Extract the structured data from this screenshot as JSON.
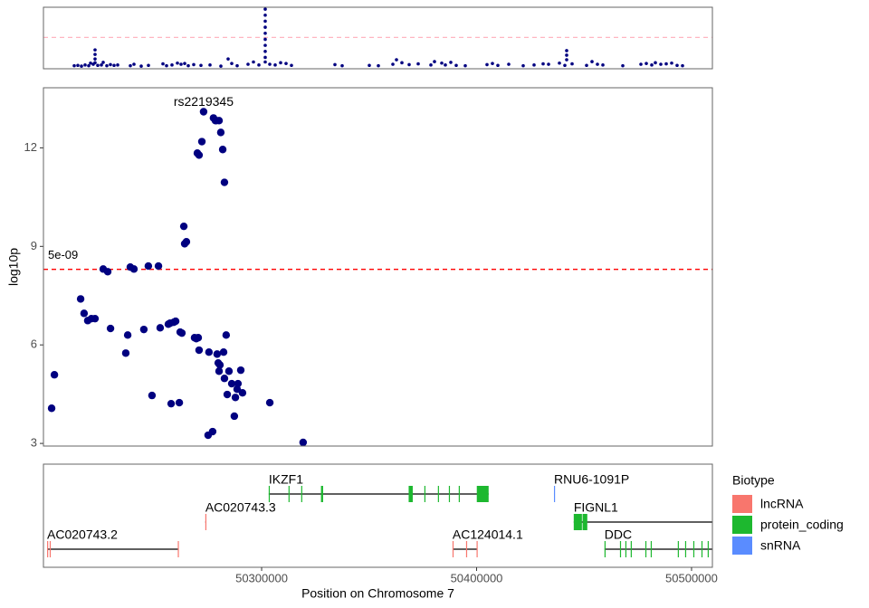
{
  "chart_data": [
    {
      "type": "scatter",
      "x": [
        34,
        38,
        42,
        46,
        50,
        52,
        55,
        57,
        57,
        57,
        57,
        60,
        64,
        66,
        70,
        74,
        78,
        82,
        96,
        100,
        108,
        116,
        132,
        136,
        142,
        148,
        152,
        156,
        160,
        166,
        174,
        184,
        196,
        204,
        208,
        214,
        226,
        232,
        238,
        245,
        245,
        245,
        245,
        245,
        245,
        245,
        245,
        245,
        245,
        250,
        256,
        262,
        268,
        274,
        322,
        330,
        360,
        370,
        386,
        390,
        396,
        404,
        414,
        428,
        432,
        440,
        444,
        450,
        456,
        466,
        490,
        496,
        502,
        514,
        530,
        542,
        552,
        558,
        570,
        576,
        578,
        578,
        578,
        584,
        600,
        606,
        612,
        618,
        640,
        660,
        666,
        672,
        676,
        682,
        688,
        694,
        700,
        706
      ],
      "values": [
        0.8,
        0.9,
        0.7,
        1.0,
        0.8,
        1.5,
        1.2,
        5.0,
        3.8,
        2.6,
        1.6,
        0.9,
        1.0,
        1.7,
        0.8,
        1.1,
        0.9,
        1.0,
        0.8,
        1.2,
        0.7,
        0.9,
        1.3,
        0.8,
        1.0,
        1.5,
        1.2,
        1.4,
        0.8,
        1.1,
        0.9,
        1.0,
        0.7,
        2.6,
        1.4,
        0.8,
        1.2,
        1.8,
        1.0,
        15.8,
        14.2,
        12.6,
        11.0,
        9.4,
        7.8,
        6.2,
        4.6,
        3.0,
        1.8,
        1.2,
        1.0,
        1.6,
        1.4,
        0.9,
        1.1,
        0.8,
        0.9,
        0.8,
        1.2,
        2.4,
        1.6,
        1.1,
        1.3,
        1.0,
        1.9,
        1.5,
        1.0,
        1.7,
        0.9,
        0.8,
        1.1,
        1.4,
        0.9,
        1.2,
        0.8,
        1.0,
        1.3,
        1.2,
        1.5,
        0.9,
        4.8,
        3.6,
        2.4,
        1.3,
        0.9,
        1.9,
        1.2,
        1.0,
        0.8,
        1.2,
        1.4,
        1.0,
        1.6,
        1.2,
        1.3,
        1.5,
        0.9,
        0.8
      ],
      "color": "#000080",
      "xlim": [
        0,
        739
      ],
      "ylim": [
        0,
        16.3
      ],
      "threshold": 8.3,
      "threshold_color": "#ffb6c1"
    },
    {
      "type": "scatter",
      "x": [
        50202300,
        50203600,
        50215800,
        50217400,
        50219100,
        50220800,
        50222500,
        50226300,
        50228400,
        50229700,
        50236800,
        50237700,
        50238900,
        50240600,
        50245200,
        50247300,
        50249000,
        50252000,
        50252800,
        50256600,
        50257400,
        50257900,
        50259100,
        50260000,
        50261700,
        50262100,
        50262900,
        50263800,
        50264200,
        50265000,
        50268800,
        50269600,
        50270500,
        50270900,
        50270100,
        50270900,
        50272200,
        50273000,
        50275100,
        50275500,
        50277200,
        50277600,
        50278500,
        50278900,
        50279300,
        50279800,
        50280200,
        50280200,
        50280600,
        50281000,
        50281900,
        50282300,
        50282700,
        50282700,
        50283500,
        50284000,
        50284800,
        50286100,
        50287300,
        50287800,
        50288600,
        50289000,
        50290300,
        50291100,
        50303800,
        50319300
      ],
      "values": [
        4.07,
        5.09,
        7.4,
        6.96,
        6.74,
        6.8,
        6.8,
        8.31,
        8.23,
        6.5,
        5.75,
        6.3,
        8.37,
        8.31,
        6.47,
        8.4,
        4.46,
        8.4,
        6.52,
        6.63,
        6.66,
        4.21,
        6.69,
        6.72,
        4.24,
        6.39,
        6.36,
        9.61,
        9.08,
        9.14,
        6.22,
        6.19,
        6.22,
        5.84,
        11.84,
        11.78,
        12.19,
        13.1,
        3.25,
        5.78,
        3.36,
        12.91,
        12.83,
        12.83,
        5.72,
        5.45,
        12.83,
        5.2,
        5.39,
        12.47,
        11.95,
        5.78,
        4.98,
        10.95,
        6.3,
        4.49,
        5.2,
        4.82,
        3.83,
        4.4,
        4.65,
        4.82,
        5.23,
        4.54,
        4.24,
        3.03
      ],
      "color": "#000080",
      "xlim": [
        50198500,
        50509700
      ],
      "ylim": [
        2.92,
        13.83
      ],
      "yticks": [
        3,
        6,
        9,
        12
      ],
      "ylabel": "log10p",
      "threshold": 8.30103,
      "threshold_label": "5e-09",
      "threshold_color": "#ff0000",
      "annotation": {
        "text": "rs2219345",
        "x": 50273000,
        "y": 13.1,
        "color": "#000080"
      }
    },
    {
      "type": "gene_track",
      "xlim": [
        50198500,
        50509700
      ],
      "xticks": [
        50300000,
        50400000,
        50500000
      ],
      "xlabel": "Position on Chromosome 7",
      "legend_title": "Biotype",
      "biotypes": [
        {
          "name": "lncRNA",
          "color": "#f8766d"
        },
        {
          "name": "protein_coding",
          "color": "#1db82f"
        },
        {
          "name": "snRNA",
          "color": "#5a8cff"
        }
      ],
      "genes": [
        {
          "name": "IKZF1",
          "biotype": 1,
          "start": 50303300,
          "end": 50405600,
          "exons": [
            [
              50303300,
              50303700
            ],
            [
              50312500,
              50312700
            ],
            [
              50318400,
              50318600
            ],
            [
              50327600,
              50328600
            ],
            [
              50368400,
              50370300
            ],
            [
              50375700,
              50375900
            ],
            [
              50382000,
              50382200
            ],
            [
              50387100,
              50387300
            ],
            [
              50391700,
              50391900
            ],
            [
              50400100,
              50405600
            ]
          ]
        },
        {
          "name": "RNU6-1091P",
          "biotype": 2,
          "start": 50436000,
          "end": 50436100,
          "exons": [
            [
              50436000,
              50436100
            ]
          ]
        },
        {
          "name": "AC020743.3",
          "biotype": 0,
          "start": 50273800,
          "end": 50274200,
          "exons": [
            [
              50273800,
              50274200
            ]
          ]
        },
        {
          "name": "FIGNL1",
          "biotype": 1,
          "start": 50445200,
          "end": 50565000,
          "exons": [
            [
              50445200,
              50449000
            ],
            [
              50449300,
              50451500
            ]
          ]
        },
        {
          "name": "AC020743.2",
          "biotype": 0,
          "start": 50200200,
          "end": 50261200,
          "exons": [
            [
              50200200,
              50200400
            ],
            [
              50201400,
              50201600
            ],
            [
              50261000,
              50261200
            ]
          ]
        },
        {
          "name": "AC124014.1",
          "biotype": 0,
          "start": 50388800,
          "end": 50400200,
          "exons": [
            [
              50388800,
              50389000
            ],
            [
              50395100,
              50395300
            ],
            [
              50400000,
              50400200
            ]
          ]
        },
        {
          "name": "DDC",
          "biotype": 1,
          "start": 50459500,
          "end": 50565000,
          "exons": [
            [
              50459500,
              50459700
            ],
            [
              50466700,
              50466900
            ],
            [
              50469200,
              50469400
            ],
            [
              50471700,
              50471900
            ],
            [
              50478500,
              50478700
            ],
            [
              50481000,
              50481200
            ],
            [
              50493600,
              50493800
            ],
            [
              50497000,
              50497200
            ],
            [
              50500800,
              50501000
            ],
            [
              50504600,
              50504800
            ],
            [
              50507500,
              50507700
            ]
          ]
        }
      ]
    }
  ]
}
